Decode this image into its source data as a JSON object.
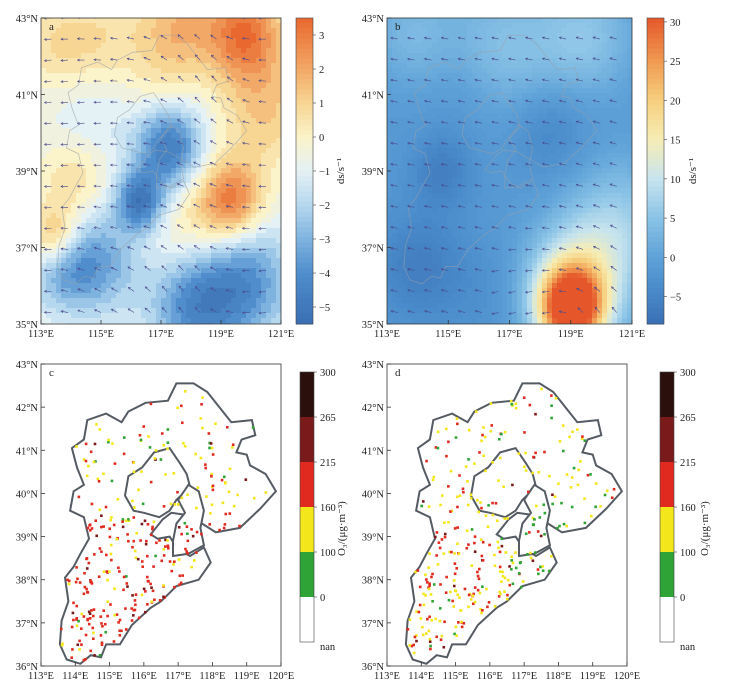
{
  "colors": {
    "map_border": "#555b63",
    "province_line": "#9aa0a6",
    "arrow": "#4a4a8c"
  },
  "chart_data": [
    {
      "panel": "a",
      "type": "heatmap",
      "title_letter": "a",
      "x_ticks": [
        "113°E",
        "115°E",
        "117°E",
        "119°E",
        "121°E"
      ],
      "x_tick_values": [
        113,
        115,
        117,
        119,
        121
      ],
      "y_ticks": [
        "43°N",
        "41°N",
        "39°N",
        "37°N",
        "35°N"
      ],
      "y_tick_values": [
        43,
        41,
        39,
        37,
        35
      ],
      "xlim": [
        113,
        121
      ],
      "ylim": [
        35,
        43
      ],
      "colorbar": {
        "label": "ds/s⁻¹",
        "ticks": [
          "3",
          "2",
          "1",
          "0",
          "−1",
          "−2",
          "−3",
          "−4",
          "−5"
        ],
        "tick_values": [
          3,
          2,
          1,
          0,
          -1,
          -2,
          -3,
          -4,
          -5
        ],
        "range": [
          -5.5,
          3.5
        ],
        "stops": [
          {
            "v": -5.5,
            "c": "#3a6fb3"
          },
          {
            "v": -4,
            "c": "#4f8dcc"
          },
          {
            "v": -3,
            "c": "#7fb3df"
          },
          {
            "v": -2,
            "c": "#b6d8ee"
          },
          {
            "v": -1,
            "c": "#e4f1f5"
          },
          {
            "v": 0,
            "c": "#fbf3c9"
          },
          {
            "v": 1,
            "c": "#f7d593"
          },
          {
            "v": 2,
            "c": "#f2a866"
          },
          {
            "v": 3.5,
            "c": "#e9682f"
          }
        ]
      },
      "features": [
        {
          "lon": 116.3,
          "lat": 38.2,
          "v": -4.8,
          "s": 0.55
        },
        {
          "lon": 117.3,
          "lat": 39.6,
          "v": -5.0,
          "s": 0.8
        },
        {
          "lon": 115.0,
          "lat": 36.6,
          "v": -3.0,
          "s": 1.0
        },
        {
          "lon": 113.7,
          "lat": 36.6,
          "v": -3.5,
          "s": 0.8
        },
        {
          "lon": 119.6,
          "lat": 36.2,
          "v": -4.5,
          "s": 1.2
        },
        {
          "lon": 118.0,
          "lat": 35.4,
          "v": -3.5,
          "s": 1.0
        },
        {
          "lon": 114.7,
          "lat": 40.5,
          "v": -1.5,
          "s": 1.2
        },
        {
          "lon": 119.4,
          "lat": 38.2,
          "v": 2.6,
          "s": 0.75
        },
        {
          "lon": 118.5,
          "lat": 37.6,
          "v": 1.2,
          "s": 1.2
        },
        {
          "lon": 113.5,
          "lat": 37.2,
          "v": 3.0,
          "s": 0.6
        },
        {
          "lon": 114.1,
          "lat": 38.8,
          "v": 1.0,
          "s": 0.8
        },
        {
          "lon": 113.6,
          "lat": 42.2,
          "v": 0.8,
          "s": 0.9
        },
        {
          "lon": 115.2,
          "lat": 42.4,
          "v": 0.6,
          "s": 1.0
        },
        {
          "lon": 119.8,
          "lat": 42.6,
          "v": 3.2,
          "s": 0.9
        },
        {
          "lon": 117.6,
          "lat": 42.8,
          "v": 1.5,
          "s": 0.9
        },
        {
          "lon": 120.5,
          "lat": 40.6,
          "v": 1.2,
          "s": 1.0
        },
        {
          "lon": 117.0,
          "lat": 41.2,
          "v": 0.2,
          "s": 0.9
        }
      ],
      "base": -0.6,
      "vectors": {
        "u": [
          [
            -0.7,
            0.3
          ],
          [
            -0.5,
            0.6
          ],
          [
            -0.8,
            0.2
          ]
        ],
        "scale": 0.22
      }
    },
    {
      "panel": "b",
      "type": "heatmap",
      "title_letter": "b",
      "x_ticks": [
        "113°E",
        "115°E",
        "117°E",
        "119°E",
        "121°E"
      ],
      "x_tick_values": [
        113,
        115,
        117,
        119,
        121
      ],
      "y_ticks": [
        "43°N",
        "41°N",
        "39°N",
        "37°N",
        "35°N"
      ],
      "y_tick_values": [
        43,
        41,
        39,
        37,
        35
      ],
      "xlim": [
        113,
        121
      ],
      "ylim": [
        35,
        43
      ],
      "colorbar": {
        "label": "ds/s⁻¹",
        "ticks": [
          "30",
          "25",
          "20",
          "15",
          "10",
          "5",
          "0",
          "−5"
        ],
        "tick_values": [
          30,
          25,
          20,
          15,
          10,
          5,
          0,
          -5
        ],
        "range": [
          -8.5,
          30.5
        ],
        "stops": [
          {
            "v": -8.5,
            "c": "#3a70b5"
          },
          {
            "v": -4,
            "c": "#4a8bcb"
          },
          {
            "v": 0,
            "c": "#5fa2d8"
          },
          {
            "v": 5,
            "c": "#8ac3e6"
          },
          {
            "v": 10,
            "c": "#c7e4ee"
          },
          {
            "v": 15,
            "c": "#f6edb5"
          },
          {
            "v": 20,
            "c": "#f6cf7e"
          },
          {
            "v": 25,
            "c": "#f09a52"
          },
          {
            "v": 30.5,
            "c": "#e5572a"
          }
        ]
      },
      "features": [
        {
          "lon": 119.0,
          "lat": 35.4,
          "v": 31,
          "s": 0.7
        },
        {
          "lon": 119.2,
          "lat": 36.0,
          "v": 14,
          "s": 1.1
        },
        {
          "lon": 120.6,
          "lat": 37.6,
          "v": 6,
          "s": 1.2
        },
        {
          "lon": 116.8,
          "lat": 42.2,
          "v": 4.5,
          "s": 1.3
        },
        {
          "lon": 119.5,
          "lat": 42.5,
          "v": 5,
          "s": 1.1
        },
        {
          "lon": 113.8,
          "lat": 42.6,
          "v": 3,
          "s": 1.0
        },
        {
          "lon": 114.8,
          "lat": 39.0,
          "v": -6,
          "s": 0.7
        },
        {
          "lon": 118.3,
          "lat": 40.1,
          "v": -5,
          "s": 0.9
        },
        {
          "lon": 114.0,
          "lat": 36.5,
          "v": -6,
          "s": 1.0
        },
        {
          "lon": 116.0,
          "lat": 35.8,
          "v": -3,
          "s": 1.0
        },
        {
          "lon": 115.6,
          "lat": 41.1,
          "v": -3,
          "s": 0.9
        }
      ],
      "base": -1.5,
      "vectors": {
        "u": [
          [
            0.6,
            0.6
          ],
          [
            -0.2,
            0.8
          ],
          [
            0.7,
            -0.5
          ]
        ],
        "scale": 0.22
      }
    },
    {
      "panel": "c",
      "type": "scatter",
      "title_letter": "c",
      "x_ticks": [
        "113°E",
        "114°E",
        "115°E",
        "116°E",
        "117°E",
        "118°E",
        "119°E",
        "120°E"
      ],
      "x_tick_values": [
        113,
        114,
        115,
        116,
        117,
        118,
        119,
        120
      ],
      "y_ticks": [
        "43°N",
        "42°N",
        "41°N",
        "40°N",
        "39°N",
        "38°N",
        "37°N",
        "36°N"
      ],
      "y_tick_values": [
        43,
        42,
        41,
        40,
        39,
        38,
        37,
        36
      ],
      "xlim": [
        113,
        120
      ],
      "ylim": [
        36,
        43
      ],
      "colorbar": {
        "label": "O₃/(μg·m⁻³)",
        "ticks": [
          "300",
          "265",
          "215",
          "160",
          "100",
          "0",
          "nan"
        ],
        "bands": [
          {
            "from": 265,
            "to": 300,
            "c": "#2b0f0c"
          },
          {
            "from": 215,
            "to": 265,
            "c": "#7a1a1a"
          },
          {
            "from": 160,
            "to": 215,
            "c": "#e12a1f"
          },
          {
            "from": 100,
            "to": 160,
            "c": "#f3e61b"
          },
          {
            "from": 0,
            "to": 100,
            "c": "#2fa336"
          },
          {
            "from": "nan",
            "to": "nan",
            "c": "#ffffff"
          }
        ]
      },
      "levels": {
        "south": 0.86,
        "north": 0.32,
        "seed": 7
      }
    },
    {
      "panel": "d",
      "type": "scatter",
      "title_letter": "d",
      "x_ticks": [
        "113°E",
        "114°E",
        "115°E",
        "116°E",
        "117°E",
        "118°E",
        "119°E",
        "120°E"
      ],
      "x_tick_values": [
        113,
        114,
        115,
        116,
        117,
        118,
        119,
        120
      ],
      "y_ticks": [
        "43°N",
        "42°N",
        "41°N",
        "40°N",
        "39°N",
        "38°N",
        "37°N",
        "36°N"
      ],
      "y_tick_values": [
        43,
        42,
        41,
        40,
        39,
        38,
        37,
        36
      ],
      "xlim": [
        113,
        120
      ],
      "ylim": [
        36,
        43
      ],
      "colorbar": {
        "label": "O₃/(μg·m⁻³)",
        "ticks": [
          "300",
          "265",
          "215",
          "160",
          "100",
          "0",
          "nan"
        ],
        "bands": [
          {
            "from": 265,
            "to": 300,
            "c": "#2b0f0c"
          },
          {
            "from": 215,
            "to": 265,
            "c": "#7a1a1a"
          },
          {
            "from": 160,
            "to": 215,
            "c": "#e12a1f"
          },
          {
            "from": 100,
            "to": 160,
            "c": "#f3e61b"
          },
          {
            "from": 0,
            "to": 100,
            "c": "#2fa336"
          },
          {
            "from": "nan",
            "to": "nan",
            "c": "#ffffff"
          }
        ]
      },
      "levels": {
        "south": 0.42,
        "north": 0.22,
        "seed": 19
      }
    }
  ],
  "hebei_outline": [
    [
      113.55,
      36.5
    ],
    [
      113.75,
      36.15
    ],
    [
      114.15,
      36.05
    ],
    [
      114.45,
      36.25
    ],
    [
      114.75,
      36.2
    ],
    [
      114.9,
      36.5
    ],
    [
      115.3,
      36.5
    ],
    [
      115.65,
      36.95
    ],
    [
      116.2,
      37.35
    ],
    [
      116.5,
      37.5
    ],
    [
      116.95,
      37.85
    ],
    [
      117.6,
      38.0
    ],
    [
      117.95,
      38.4
    ],
    [
      117.75,
      38.75
    ],
    [
      117.35,
      38.55
    ],
    [
      117.0,
      38.7
    ],
    [
      116.75,
      39.0
    ],
    [
      116.4,
      38.95
    ],
    [
      116.2,
      39.05
    ],
    [
      116.55,
      39.4
    ],
    [
      116.8,
      39.55
    ],
    [
      117.25,
      39.5
    ],
    [
      117.7,
      39.3
    ],
    [
      118.1,
      39.1
    ],
    [
      118.8,
      39.2
    ],
    [
      119.4,
      39.65
    ],
    [
      119.85,
      40.05
    ],
    [
      119.55,
      40.45
    ],
    [
      119.1,
      40.65
    ],
    [
      119.0,
      40.9
    ],
    [
      118.7,
      40.95
    ],
    [
      118.85,
      41.25
    ],
    [
      119.25,
      41.35
    ],
    [
      119.15,
      41.7
    ],
    [
      118.55,
      41.65
    ],
    [
      118.2,
      42.0
    ],
    [
      117.85,
      42.35
    ],
    [
      117.45,
      42.55
    ],
    [
      116.95,
      42.55
    ],
    [
      116.7,
      42.15
    ],
    [
      116.05,
      42.1
    ],
    [
      115.55,
      41.9
    ],
    [
      115.35,
      41.65
    ],
    [
      114.9,
      41.85
    ],
    [
      114.35,
      41.7
    ],
    [
      114.25,
      41.25
    ],
    [
      113.9,
      41.05
    ],
    [
      114.05,
      40.6
    ],
    [
      114.25,
      40.2
    ],
    [
      113.95,
      40.05
    ],
    [
      113.85,
      39.6
    ],
    [
      114.25,
      39.45
    ],
    [
      114.4,
      38.95
    ],
    [
      114.15,
      38.6
    ],
    [
      113.95,
      38.3
    ],
    [
      113.7,
      38.05
    ],
    [
      113.8,
      37.5
    ],
    [
      113.6,
      37.05
    ],
    [
      113.55,
      36.5
    ]
  ],
  "beijing_outline": [
    [
      115.45,
      39.95
    ],
    [
      115.7,
      39.6
    ],
    [
      116.0,
      39.55
    ],
    [
      116.45,
      39.45
    ],
    [
      116.75,
      39.6
    ],
    [
      116.95,
      39.85
    ],
    [
      117.35,
      40.15
    ],
    [
      117.25,
      40.45
    ],
    [
      117.05,
      40.7
    ],
    [
      116.75,
      41.05
    ],
    [
      116.3,
      40.95
    ],
    [
      115.95,
      40.6
    ],
    [
      115.55,
      40.4
    ],
    [
      115.45,
      39.95
    ]
  ],
  "tianjin_outline": [
    [
      116.85,
      38.55
    ],
    [
      117.3,
      38.6
    ],
    [
      117.75,
      38.8
    ],
    [
      117.65,
      39.2
    ],
    [
      117.75,
      39.6
    ],
    [
      117.6,
      40.05
    ],
    [
      117.3,
      40.2
    ],
    [
      117.0,
      39.85
    ],
    [
      117.2,
      39.55
    ],
    [
      116.95,
      39.3
    ],
    [
      116.85,
      38.9
    ],
    [
      116.85,
      38.55
    ]
  ]
}
